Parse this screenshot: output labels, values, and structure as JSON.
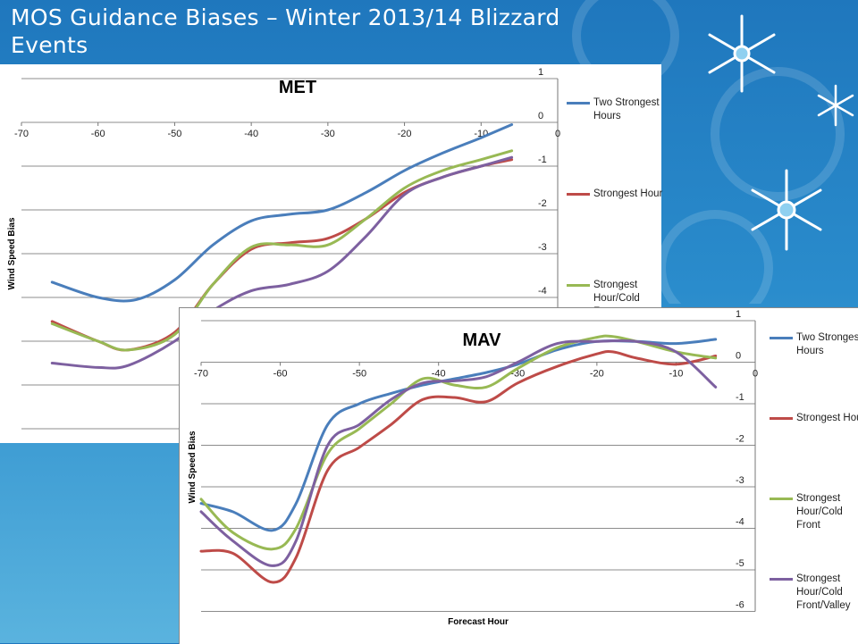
{
  "slide": {
    "title": "MOS Guidance Biases – Winter 2013/14 Blizzard Events"
  },
  "chart_data": [
    {
      "type": "line",
      "title": "MET",
      "xlabel": "",
      "ylabel": "Wind Speed Bias",
      "xlim": [
        -70,
        0
      ],
      "ylim": [
        -7,
        1
      ],
      "xticks": [
        -70,
        -60,
        -50,
        -40,
        -30,
        -20,
        -10,
        0
      ],
      "yticks": [
        1,
        0,
        -1,
        -2,
        -3,
        -4
      ],
      "grid": true,
      "legend_position": "right",
      "series": [
        {
          "name": "Two Strongest Hours",
          "color": "#4a7ebb",
          "x": [
            -66,
            -60,
            -55,
            -50,
            -45,
            -40,
            -35,
            -30,
            -25,
            -20,
            -15,
            -10,
            -6
          ],
          "y": [
            -3.65,
            -4.0,
            -4.05,
            -3.6,
            -2.8,
            -2.25,
            -2.1,
            -2.0,
            -1.6,
            -1.1,
            -0.7,
            -0.35,
            -0.05
          ]
        },
        {
          "name": "Strongest Hour",
          "color": "#be4b48",
          "x": [
            -66,
            -60,
            -56,
            -50,
            -45,
            -40,
            -35,
            -30,
            -25,
            -20,
            -15,
            -10,
            -6
          ],
          "y": [
            -4.55,
            -5.0,
            -5.2,
            -4.8,
            -3.7,
            -2.9,
            -2.75,
            -2.65,
            -2.2,
            -1.6,
            -1.25,
            -1.0,
            -0.85
          ]
        },
        {
          "name": "Strongest Hour/Cold Front",
          "color": "#98b954",
          "x": [
            -66,
            -60,
            -56,
            -50,
            -45,
            -40,
            -35,
            -30,
            -25,
            -20,
            -15,
            -10,
            -6
          ],
          "y": [
            -4.6,
            -5.0,
            -5.2,
            -4.85,
            -3.7,
            -2.85,
            -2.8,
            -2.8,
            -2.2,
            -1.5,
            -1.1,
            -0.85,
            -0.65
          ]
        },
        {
          "name": "Strongest Hour/Cold Front/Valley",
          "color": "#7d60a0",
          "x": [
            -66,
            -60,
            -56,
            -50,
            -45,
            -40,
            -35,
            -30,
            -25,
            -20,
            -15,
            -10,
            -6
          ],
          "y": [
            -5.5,
            -5.6,
            -5.55,
            -5.0,
            -4.3,
            -3.85,
            -3.7,
            -3.4,
            -2.6,
            -1.65,
            -1.25,
            -1.0,
            -0.8
          ]
        }
      ]
    },
    {
      "type": "line",
      "title": "MAV",
      "xlabel": "Forecast Hour",
      "ylabel": "Wind Speed Bias",
      "xlim": [
        -70,
        0
      ],
      "ylim": [
        -6,
        1
      ],
      "xticks": [
        -70,
        -60,
        -50,
        -40,
        -30,
        -20,
        -10,
        0
      ],
      "yticks": [
        1,
        0,
        -1,
        -2,
        -3,
        -4,
        -5,
        -6
      ],
      "grid": true,
      "legend_position": "right",
      "series": [
        {
          "name": "Two Strongest Hours",
          "color": "#4a7ebb",
          "x": [
            -70,
            -66,
            -61,
            -58,
            -54,
            -50,
            -46,
            -42,
            -38,
            -34,
            -30,
            -25,
            -20,
            -15,
            -10,
            -5
          ],
          "y": [
            -3.4,
            -3.6,
            -4.05,
            -3.4,
            -1.5,
            -1.0,
            -0.75,
            -0.55,
            -0.4,
            -0.25,
            -0.05,
            0.3,
            0.5,
            0.5,
            0.45,
            0.55
          ]
        },
        {
          "name": "Strongest Hour",
          "color": "#be4b48",
          "x": [
            -70,
            -66,
            -61,
            -58,
            -54,
            -50,
            -46,
            -42,
            -38,
            -34,
            -30,
            -25,
            -20,
            -18,
            -15,
            -10,
            -5
          ],
          "y": [
            -4.55,
            -4.6,
            -5.3,
            -4.7,
            -2.6,
            -2.05,
            -1.5,
            -0.9,
            -0.85,
            -0.95,
            -0.5,
            -0.1,
            0.2,
            0.25,
            0.1,
            -0.05,
            0.15
          ]
        },
        {
          "name": "Strongest Hour/Cold Front",
          "color": "#98b954",
          "x": [
            -70,
            -66,
            -61,
            -58,
            -54,
            -50,
            -46,
            -42,
            -38,
            -34,
            -30,
            -25,
            -20,
            -18,
            -15,
            -10,
            -5
          ],
          "y": [
            -3.3,
            -4.1,
            -4.5,
            -4.0,
            -2.2,
            -1.6,
            -1.0,
            -0.4,
            -0.55,
            -0.6,
            -0.15,
            0.35,
            0.6,
            0.62,
            0.5,
            0.25,
            0.1
          ]
        },
        {
          "name": "Strongest Hour/Cold Front/Valley",
          "color": "#7d60a0",
          "x": [
            -70,
            -66,
            -61,
            -58,
            -54,
            -50,
            -46,
            -42,
            -38,
            -34,
            -30,
            -25,
            -20,
            -15,
            -10,
            -5
          ],
          "y": [
            -3.6,
            -4.3,
            -4.9,
            -4.3,
            -2.0,
            -1.5,
            -0.9,
            -0.5,
            -0.45,
            -0.35,
            0.0,
            0.45,
            0.5,
            0.5,
            0.25,
            -0.6
          ]
        }
      ]
    }
  ]
}
